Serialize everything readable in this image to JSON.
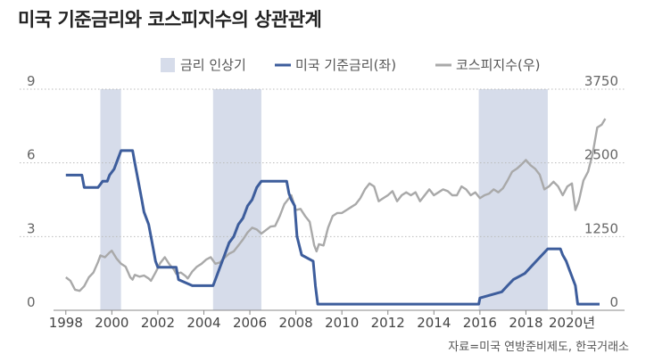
{
  "chart_data": {
    "type": "line",
    "title": "미국 기준금리와 코스피지수의 상관관계",
    "source": "자료=미국 연방준비제도, 한국거래소",
    "x_ticks": [
      "1998",
      "2000",
      "2002",
      "2004",
      "2006",
      "2008",
      "2010",
      "2012",
      "2014",
      "2016",
      "2018",
      "2020년"
    ],
    "xlim": [
      1997.0,
      2021.9
    ],
    "y_left": {
      "ticks": [
        "9",
        "6",
        "3",
        "0"
      ],
      "ylim": [
        0,
        9
      ]
    },
    "y_right": {
      "ticks": [
        "3750",
        "2500",
        "1250",
        "0"
      ],
      "ylim": [
        0,
        3750
      ]
    },
    "grid": true,
    "legend_position": "top-right",
    "legend": {
      "shade": "금리 인상기",
      "rate": "미국 기준금리(좌)",
      "kospi": "코스피지수(우)"
    },
    "colors": {
      "shade": "#d6dcea",
      "rate": "#3d5d9c",
      "kospi": "#a9a9a9",
      "grid": "#bbbbbb"
    },
    "shaded_periods": [
      [
        1999.5,
        2000.4
      ],
      [
        2004.4,
        2006.5
      ],
      [
        2015.95,
        2018.95
      ]
    ],
    "series": [
      {
        "name": "미국 기준금리(좌)",
        "axis": "left",
        "points": [
          [
            1998.0,
            5.5
          ],
          [
            1998.7,
            5.5
          ],
          [
            1998.8,
            5.0
          ],
          [
            1999.4,
            5.0
          ],
          [
            1999.6,
            5.25
          ],
          [
            1999.8,
            5.25
          ],
          [
            1999.9,
            5.5
          ],
          [
            2000.1,
            5.75
          ],
          [
            2000.2,
            6.0
          ],
          [
            2000.3,
            6.25
          ],
          [
            2000.4,
            6.5
          ],
          [
            2000.9,
            6.5
          ],
          [
            2001.0,
            6.0
          ],
          [
            2001.1,
            5.5
          ],
          [
            2001.2,
            5.0
          ],
          [
            2001.3,
            4.5
          ],
          [
            2001.4,
            4.0
          ],
          [
            2001.5,
            3.75
          ],
          [
            2001.6,
            3.5
          ],
          [
            2001.7,
            3.0
          ],
          [
            2001.8,
            2.5
          ],
          [
            2001.9,
            2.0
          ],
          [
            2002.0,
            1.75
          ],
          [
            2002.8,
            1.75
          ],
          [
            2002.9,
            1.25
          ],
          [
            2003.5,
            1.0
          ],
          [
            2004.4,
            1.0
          ],
          [
            2004.5,
            1.25
          ],
          [
            2004.7,
            1.75
          ],
          [
            2004.9,
            2.25
          ],
          [
            2005.1,
            2.75
          ],
          [
            2005.3,
            3.0
          ],
          [
            2005.5,
            3.5
          ],
          [
            2005.7,
            3.75
          ],
          [
            2005.9,
            4.25
          ],
          [
            2006.1,
            4.5
          ],
          [
            2006.3,
            5.0
          ],
          [
            2006.5,
            5.25
          ],
          [
            2007.6,
            5.25
          ],
          [
            2007.7,
            4.75
          ],
          [
            2007.8,
            4.5
          ],
          [
            2007.95,
            4.25
          ],
          [
            2008.05,
            3.0
          ],
          [
            2008.25,
            2.25
          ],
          [
            2008.75,
            2.0
          ],
          [
            2008.85,
            1.0
          ],
          [
            2008.95,
            0.25
          ],
          [
            2015.95,
            0.25
          ],
          [
            2016.0,
            0.5
          ],
          [
            2016.95,
            0.75
          ],
          [
            2017.2,
            1.0
          ],
          [
            2017.45,
            1.25
          ],
          [
            2017.95,
            1.5
          ],
          [
            2018.2,
            1.75
          ],
          [
            2018.45,
            2.0
          ],
          [
            2018.7,
            2.25
          ],
          [
            2018.95,
            2.5
          ],
          [
            2019.5,
            2.5
          ],
          [
            2019.6,
            2.25
          ],
          [
            2019.75,
            2.0
          ],
          [
            2019.85,
            1.75
          ],
          [
            2020.15,
            1.0
          ],
          [
            2020.25,
            0.25
          ],
          [
            2021.2,
            0.25
          ]
        ]
      },
      {
        "name": "코스피지수(우)",
        "axis": "right",
        "points": [
          [
            1998.0,
            560
          ],
          [
            1998.2,
            500
          ],
          [
            1998.4,
            350
          ],
          [
            1998.6,
            330
          ],
          [
            1998.8,
            410
          ],
          [
            1999.0,
            560
          ],
          [
            1999.2,
            640
          ],
          [
            1999.4,
            820
          ],
          [
            1999.5,
            930
          ],
          [
            1999.7,
            900
          ],
          [
            1999.9,
            980
          ],
          [
            2000.0,
            1010
          ],
          [
            2000.2,
            880
          ],
          [
            2000.4,
            790
          ],
          [
            2000.6,
            740
          ],
          [
            2000.8,
            560
          ],
          [
            2000.9,
            520
          ],
          [
            2001.0,
            600
          ],
          [
            2001.2,
            570
          ],
          [
            2001.4,
            590
          ],
          [
            2001.6,
            540
          ],
          [
            2001.7,
            500
          ],
          [
            2001.9,
            640
          ],
          [
            2002.1,
            800
          ],
          [
            2002.3,
            900
          ],
          [
            2002.5,
            780
          ],
          [
            2002.7,
            690
          ],
          [
            2002.8,
            620
          ],
          [
            2003.0,
            640
          ],
          [
            2003.2,
            580
          ],
          [
            2003.3,
            540
          ],
          [
            2003.5,
            660
          ],
          [
            2003.7,
            740
          ],
          [
            2003.9,
            790
          ],
          [
            2004.1,
            860
          ],
          [
            2004.3,
            900
          ],
          [
            2004.5,
            790
          ],
          [
            2004.7,
            810
          ],
          [
            2004.9,
            890
          ],
          [
            2005.1,
            960
          ],
          [
            2005.3,
            1000
          ],
          [
            2005.5,
            1100
          ],
          [
            2005.7,
            1200
          ],
          [
            2005.9,
            1320
          ],
          [
            2006.1,
            1400
          ],
          [
            2006.3,
            1370
          ],
          [
            2006.5,
            1300
          ],
          [
            2006.7,
            1360
          ],
          [
            2006.9,
            1420
          ],
          [
            2007.1,
            1430
          ],
          [
            2007.3,
            1600
          ],
          [
            2007.5,
            1800
          ],
          [
            2007.7,
            1900
          ],
          [
            2007.8,
            1950
          ],
          [
            2008.0,
            1700
          ],
          [
            2008.2,
            1720
          ],
          [
            2008.4,
            1600
          ],
          [
            2008.6,
            1500
          ],
          [
            2008.8,
            1100
          ],
          [
            2008.9,
            1000
          ],
          [
            2009.0,
            1120
          ],
          [
            2009.2,
            1100
          ],
          [
            2009.4,
            1400
          ],
          [
            2009.6,
            1600
          ],
          [
            2009.8,
            1650
          ],
          [
            2010.0,
            1650
          ],
          [
            2010.2,
            1700
          ],
          [
            2010.4,
            1750
          ],
          [
            2010.6,
            1800
          ],
          [
            2010.8,
            1900
          ],
          [
            2011.0,
            2050
          ],
          [
            2011.2,
            2150
          ],
          [
            2011.4,
            2100
          ],
          [
            2011.6,
            1850
          ],
          [
            2011.8,
            1900
          ],
          [
            2012.0,
            1950
          ],
          [
            2012.2,
            2020
          ],
          [
            2012.4,
            1850
          ],
          [
            2012.6,
            1950
          ],
          [
            2012.8,
            2000
          ],
          [
            2013.0,
            1950
          ],
          [
            2013.2,
            2000
          ],
          [
            2013.4,
            1850
          ],
          [
            2013.6,
            1950
          ],
          [
            2013.8,
            2050
          ],
          [
            2014.0,
            1950
          ],
          [
            2014.2,
            2000
          ],
          [
            2014.4,
            2050
          ],
          [
            2014.6,
            2020
          ],
          [
            2014.8,
            1950
          ],
          [
            2015.0,
            1950
          ],
          [
            2015.2,
            2100
          ],
          [
            2015.4,
            2050
          ],
          [
            2015.6,
            1950
          ],
          [
            2015.8,
            2000
          ],
          [
            2016.0,
            1900
          ],
          [
            2016.2,
            1950
          ],
          [
            2016.4,
            1980
          ],
          [
            2016.6,
            2050
          ],
          [
            2016.8,
            2000
          ],
          [
            2017.0,
            2070
          ],
          [
            2017.2,
            2200
          ],
          [
            2017.4,
            2350
          ],
          [
            2017.6,
            2400
          ],
          [
            2017.8,
            2470
          ],
          [
            2018.0,
            2550
          ],
          [
            2018.2,
            2460
          ],
          [
            2018.4,
            2400
          ],
          [
            2018.6,
            2300
          ],
          [
            2018.8,
            2050
          ],
          [
            2019.0,
            2100
          ],
          [
            2019.2,
            2180
          ],
          [
            2019.4,
            2100
          ],
          [
            2019.6,
            1950
          ],
          [
            2019.8,
            2100
          ],
          [
            2020.0,
            2150
          ],
          [
            2020.15,
            1700
          ],
          [
            2020.3,
            1850
          ],
          [
            2020.5,
            2200
          ],
          [
            2020.7,
            2350
          ],
          [
            2020.9,
            2650
          ],
          [
            2021.1,
            3100
          ],
          [
            2021.3,
            3150
          ],
          [
            2021.45,
            3250
          ]
        ]
      }
    ]
  }
}
